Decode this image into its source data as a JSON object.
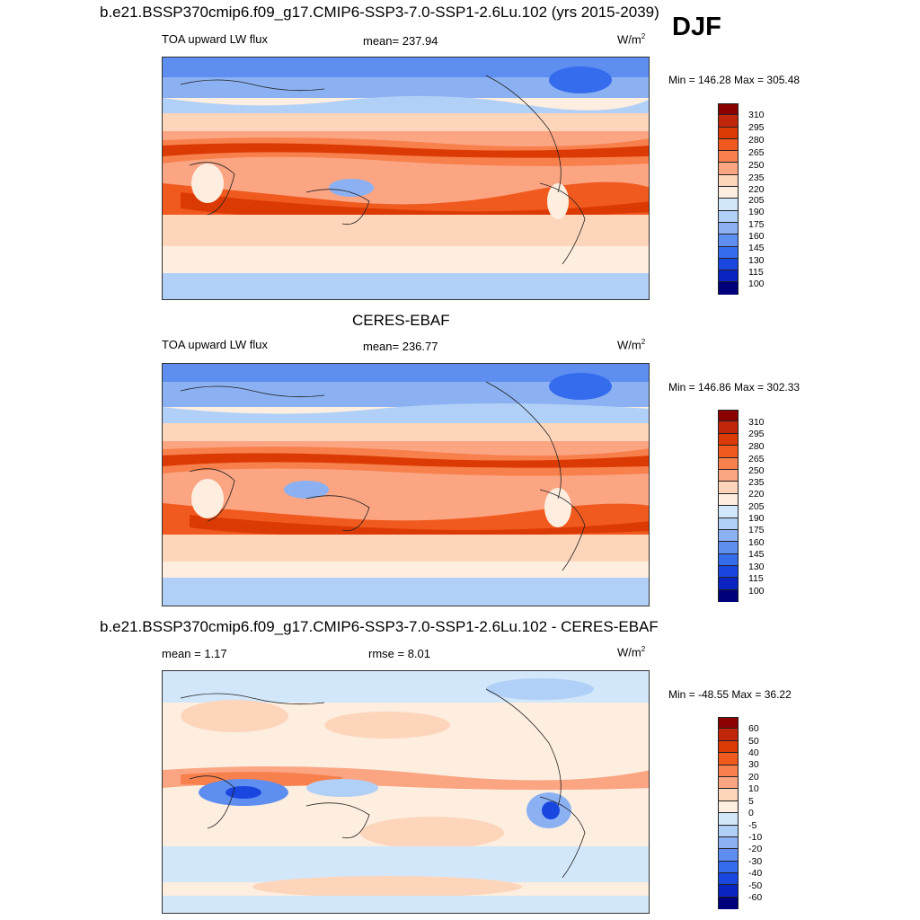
{
  "season": "DJF",
  "panels": [
    {
      "title": "b.e21.BSSP370cmip6.f09_g17.CMIP6-SSP3-7.0-SSP1-2.6Lu.102 (yrs 2015-2039)",
      "left_label": "TOA upward LW flux",
      "center_label": "mean= 237.94",
      "units": "W/m",
      "units_sup": "2",
      "minmax": "Min = 146.28 Max = 305.48"
    },
    {
      "title": "CERES-EBAF",
      "left_label": "TOA upward LW flux",
      "center_label": "mean= 236.77",
      "units": "W/m",
      "units_sup": "2",
      "minmax": "Min = 146.86 Max = 302.33"
    },
    {
      "title": "b.e21.BSSP370cmip6.f09_g17.CMIP6-SSP3-7.0-SSP1-2.6Lu.102 - CERES-EBAF",
      "left_label": "mean =   1.17",
      "center_label": "rmse =   8.01",
      "units": "W/m",
      "units_sup": "2",
      "minmax": "Min = -48.55 Max =  36.22"
    }
  ],
  "chart_data": [
    {
      "type": "heatmap",
      "title": "b.e21.BSSP370cmip6.f09_g17.CMIP6-SSP3-7.0-SSP1-2.6Lu.102 (yrs 2015-2039)",
      "variable": "TOA upward LW flux",
      "units": "W/m2",
      "mean": 237.94,
      "min": 146.28,
      "max": 305.48,
      "colorbar_levels": [
        100,
        115,
        130,
        145,
        160,
        175,
        190,
        205,
        220,
        235,
        250,
        265,
        280,
        295,
        310
      ],
      "colorbar_tick_labels": [
        "310",
        "295",
        "280",
        "265",
        "250",
        "235",
        "220",
        "205",
        "190",
        "175",
        "160",
        "145",
        "130",
        "115",
        "100"
      ],
      "colorbar_colors": [
        "#8b0000",
        "#c1260a",
        "#dc3a05",
        "#f15a1e",
        "#f7804d",
        "#fba583",
        "#fdd5bb",
        "#fdeee0",
        "#d3e7fb",
        "#b1d0f7",
        "#8bb1f2",
        "#5e8ef0",
        "#356cee",
        "#1a46e0",
        "#0a24c2",
        "#00007a"
      ],
      "map": "global lat-lon (Pacific-centered)"
    },
    {
      "type": "heatmap",
      "title": "CERES-EBAF",
      "variable": "TOA upward LW flux",
      "units": "W/m2",
      "mean": 236.77,
      "min": 146.86,
      "max": 302.33,
      "colorbar_levels": [
        100,
        115,
        130,
        145,
        160,
        175,
        190,
        205,
        220,
        235,
        250,
        265,
        280,
        295,
        310
      ],
      "colorbar_tick_labels": [
        "310",
        "295",
        "280",
        "265",
        "250",
        "235",
        "220",
        "205",
        "190",
        "175",
        "160",
        "145",
        "130",
        "115",
        "100"
      ],
      "colorbar_colors": [
        "#8b0000",
        "#c1260a",
        "#dc3a05",
        "#f15a1e",
        "#f7804d",
        "#fba583",
        "#fdd5bb",
        "#fdeee0",
        "#d3e7fb",
        "#b1d0f7",
        "#8bb1f2",
        "#5e8ef0",
        "#356cee",
        "#1a46e0",
        "#0a24c2",
        "#00007a"
      ],
      "map": "global lat-lon (Pacific-centered)"
    },
    {
      "type": "heatmap",
      "title": "b.e21.BSSP370cmip6.f09_g17.CMIP6-SSP3-7.0-SSP1-2.6Lu.102 - CERES-EBAF",
      "variable": "difference",
      "units": "W/m2",
      "mean": 1.17,
      "rmse": 8.01,
      "min": -48.55,
      "max": 36.22,
      "colorbar_levels": [
        -60,
        -50,
        -40,
        -30,
        -20,
        -10,
        -5,
        0,
        5,
        10,
        20,
        30,
        40,
        50,
        60
      ],
      "colorbar_tick_labels": [
        "60",
        "50",
        "40",
        "30",
        "20",
        "10",
        "5",
        "0",
        "-5",
        "-10",
        "-20",
        "-30",
        "-40",
        "-50",
        "-60"
      ],
      "colorbar_colors": [
        "#8b0000",
        "#c1260a",
        "#dc3a05",
        "#f15a1e",
        "#f7804d",
        "#fba583",
        "#fdd5bb",
        "#fdeee0",
        "#d3e7fb",
        "#b1d0f7",
        "#8bb1f2",
        "#5e8ef0",
        "#356cee",
        "#1a46e0",
        "#0a24c2",
        "#00007a"
      ],
      "map": "global lat-lon (Pacific-centered)"
    }
  ]
}
